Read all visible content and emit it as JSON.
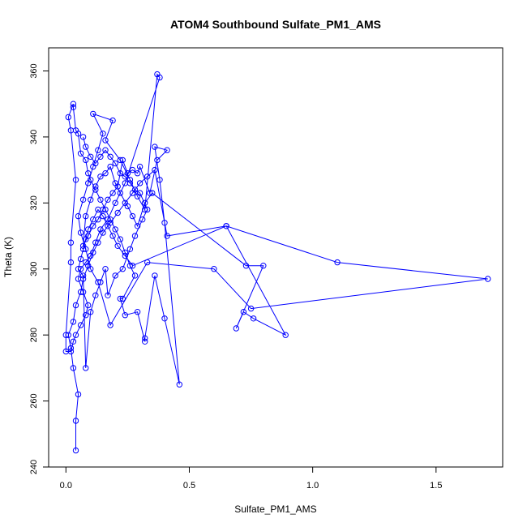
{
  "chart_data": {
    "type": "line",
    "title": "ATOM4 Southbound Sulfate_PM1_AMS",
    "xlabel": "Sulfate_PM1_AMS",
    "ylabel": "Theta (K)",
    "xlim": [
      -0.07,
      1.77
    ],
    "ylim": [
      240,
      367
    ],
    "xticks": [
      0.0,
      0.5,
      1.0,
      1.5
    ],
    "xtick_labels": [
      "0.0",
      "0.5",
      "1.0",
      "1.5"
    ],
    "yticks": [
      240,
      260,
      280,
      300,
      320,
      340,
      360
    ],
    "ytick_labels": [
      "240",
      "260",
      "280",
      "300",
      "320",
      "340",
      "360"
    ],
    "grid": false,
    "marker": "open-circle",
    "series": [
      {
        "color": "#0000ff",
        "points": [
          [
            0.04,
            245
          ],
          [
            0.04,
            254
          ],
          [
            0.05,
            262
          ],
          [
            0.03,
            270
          ],
          [
            0.02,
            276
          ],
          [
            0.01,
            280
          ],
          [
            0.03,
            284
          ],
          [
            0.04,
            289
          ],
          [
            0.06,
            293
          ],
          [
            0.07,
            297
          ],
          [
            0.09,
            301
          ],
          [
            0.11,
            305
          ],
          [
            0.13,
            308
          ],
          [
            0.15,
            311
          ],
          [
            0.18,
            314
          ],
          [
            0.21,
            317
          ],
          [
            0.24,
            320
          ],
          [
            0.27,
            323
          ],
          [
            0.3,
            326
          ],
          [
            0.33,
            328
          ],
          [
            0.36,
            330
          ],
          [
            0.41,
            310
          ],
          [
            0.65,
            313
          ],
          [
            1.1,
            302
          ],
          [
            1.71,
            297
          ],
          [
            0.75,
            288
          ],
          [
            0.6,
            300
          ],
          [
            0.33,
            302
          ],
          [
            0.18,
            283
          ],
          [
            0.13,
            296
          ],
          [
            0.1,
            300
          ],
          [
            0.08,
            306
          ],
          [
            0.06,
            311
          ],
          [
            0.05,
            316
          ],
          [
            0.07,
            321
          ],
          [
            0.09,
            326
          ],
          [
            0.11,
            331
          ],
          [
            0.13,
            336
          ],
          [
            0.15,
            341
          ],
          [
            0.11,
            347
          ],
          [
            0.19,
            345
          ],
          [
            0.16,
            339
          ],
          [
            0.22,
            333
          ],
          [
            0.26,
            327
          ],
          [
            0.29,
            322
          ],
          [
            0.32,
            318
          ],
          [
            0.37,
            359
          ],
          [
            0.38,
            358
          ],
          [
            0.24,
            326
          ],
          [
            0.2,
            320
          ],
          [
            0.17,
            315
          ],
          [
            0.14,
            312
          ],
          [
            0.12,
            308
          ],
          [
            0.1,
            304
          ],
          [
            0.08,
            302
          ],
          [
            0.06,
            300
          ],
          [
            0.05,
            297
          ],
          [
            0.07,
            293
          ],
          [
            0.09,
            289
          ],
          [
            0.08,
            286
          ],
          [
            0.06,
            283
          ],
          [
            0.04,
            280
          ],
          [
            0.03,
            278
          ],
          [
            0.02,
            275
          ],
          [
            0.0,
            275
          ],
          [
            0.0,
            280
          ],
          [
            0.02,
            302
          ],
          [
            0.02,
            308
          ],
          [
            0.04,
            327
          ],
          [
            0.02,
            342
          ],
          [
            0.01,
            346
          ],
          [
            0.03,
            350
          ],
          [
            0.03,
            349
          ],
          [
            0.04,
            342
          ],
          [
            0.05,
            341
          ],
          [
            0.06,
            335
          ],
          [
            0.08,
            333
          ],
          [
            0.09,
            329
          ],
          [
            0.1,
            327
          ],
          [
            0.12,
            324
          ],
          [
            0.14,
            321
          ],
          [
            0.16,
            318
          ],
          [
            0.18,
            315
          ],
          [
            0.2,
            312
          ],
          [
            0.22,
            309
          ],
          [
            0.24,
            305
          ],
          [
            0.26,
            301
          ],
          [
            0.28,
            298
          ],
          [
            0.23,
            291
          ],
          [
            0.22,
            291
          ],
          [
            0.24,
            286
          ],
          [
            0.29,
            287
          ],
          [
            0.32,
            278
          ],
          [
            0.32,
            279
          ],
          [
            0.36,
            298
          ],
          [
            0.4,
            285
          ],
          [
            0.46,
            265
          ],
          [
            0.4,
            314
          ],
          [
            0.38,
            327
          ],
          [
            0.36,
            337
          ],
          [
            0.41,
            336
          ],
          [
            0.37,
            333
          ],
          [
            0.34,
            323
          ],
          [
            0.3,
            331
          ],
          [
            0.29,
            329
          ],
          [
            0.27,
            330
          ],
          [
            0.25,
            329
          ],
          [
            0.23,
            333
          ],
          [
            0.21,
            325
          ],
          [
            0.19,
            323
          ],
          [
            0.17,
            321
          ],
          [
            0.15,
            318
          ],
          [
            0.13,
            315
          ],
          [
            0.11,
            313
          ],
          [
            0.09,
            310
          ],
          [
            0.07,
            307
          ],
          [
            0.08,
            316
          ],
          [
            0.1,
            321
          ],
          [
            0.12,
            325
          ],
          [
            0.14,
            328
          ],
          [
            0.16,
            329
          ],
          [
            0.18,
            331
          ],
          [
            0.2,
            326
          ],
          [
            0.22,
            323
          ],
          [
            0.25,
            319
          ],
          [
            0.27,
            316
          ],
          [
            0.29,
            313
          ],
          [
            0.32,
            320
          ],
          [
            0.35,
            323
          ],
          [
            0.73,
            301
          ],
          [
            0.8,
            301
          ],
          [
            0.69,
            282
          ],
          [
            0.72,
            287
          ],
          [
            0.76,
            285
          ],
          [
            0.89,
            280
          ],
          [
            0.65,
            313
          ],
          [
            0.27,
            301
          ],
          [
            0.24,
            304
          ],
          [
            0.21,
            307
          ],
          [
            0.19,
            310
          ],
          [
            0.17,
            313
          ],
          [
            0.15,
            316
          ],
          [
            0.13,
            318
          ],
          [
            0.11,
            315
          ],
          [
            0.09,
            312
          ],
          [
            0.08,
            309
          ],
          [
            0.07,
            306
          ],
          [
            0.06,
            303
          ],
          [
            0.05,
            300
          ],
          [
            0.07,
            298
          ],
          [
            0.08,
            270
          ],
          [
            0.1,
            287
          ],
          [
            0.12,
            292
          ],
          [
            0.14,
            296
          ],
          [
            0.16,
            300
          ],
          [
            0.17,
            292
          ],
          [
            0.2,
            298
          ],
          [
            0.23,
            300
          ],
          [
            0.26,
            306
          ],
          [
            0.28,
            310
          ],
          [
            0.31,
            315
          ],
          [
            0.33,
            318
          ],
          [
            0.3,
            323
          ],
          [
            0.28,
            324
          ],
          [
            0.26,
            326
          ],
          [
            0.24,
            328
          ],
          [
            0.22,
            329
          ],
          [
            0.2,
            332
          ],
          [
            0.18,
            334
          ],
          [
            0.16,
            336
          ],
          [
            0.14,
            334
          ],
          [
            0.12,
            332
          ],
          [
            0.1,
            334
          ],
          [
            0.08,
            337
          ],
          [
            0.07,
            340
          ]
        ]
      }
    ]
  }
}
